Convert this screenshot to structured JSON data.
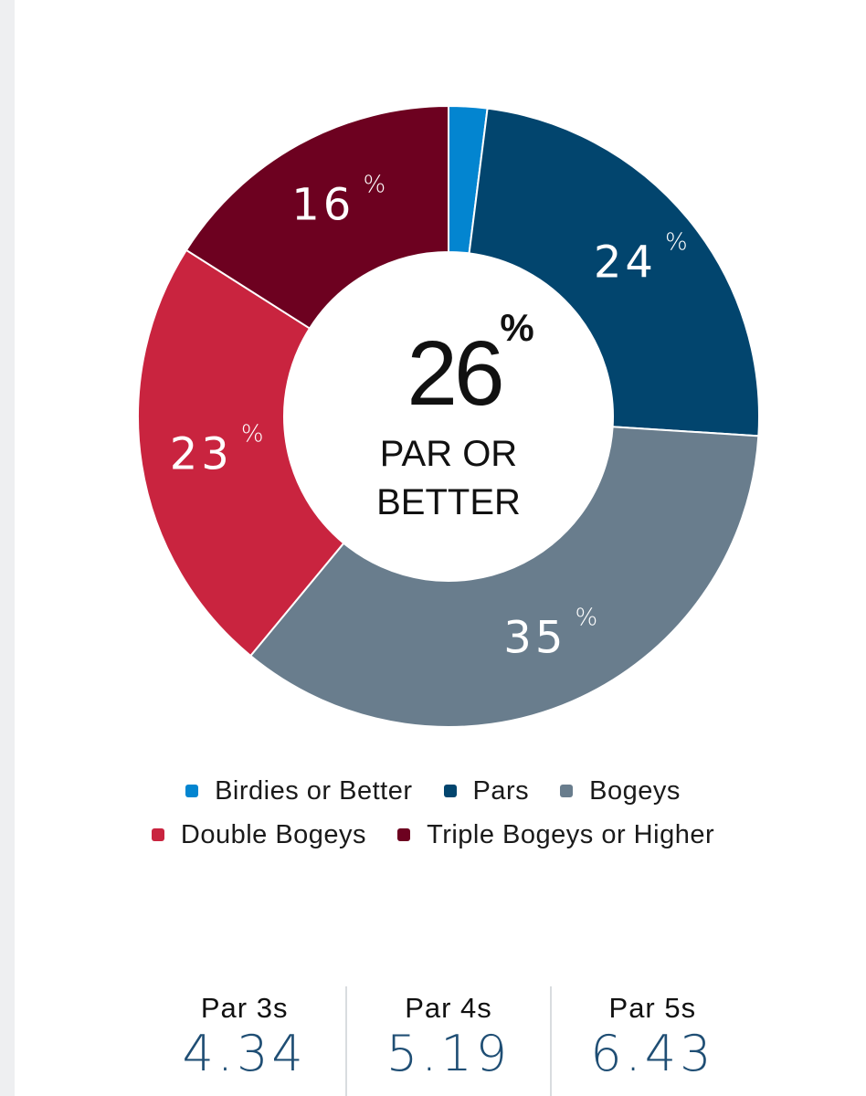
{
  "chart_data": {
    "type": "pie",
    "donut": true,
    "center": {
      "value": "26",
      "unit": "%",
      "label_line1": "PAR OR",
      "label_line2": "BETTER"
    },
    "slices": [
      {
        "name": "Birdies or Better",
        "value": 2,
        "label": "",
        "color": "#0385d0"
      },
      {
        "name": "Pars",
        "value": 24,
        "label": "24",
        "color": "#02456e"
      },
      {
        "name": "Bogeys",
        "value": 35,
        "label": "35",
        "color": "#697d8d"
      },
      {
        "name": "Double Bogeys",
        "value": 23,
        "label": "23",
        "color": "#c9243f"
      },
      {
        "name": "Triple Bogeys or Higher",
        "value": 16,
        "label": "16",
        "color": "#6d0120"
      }
    ],
    "pct_symbol": "%",
    "legend": {
      "placement": "bottom",
      "rows": [
        [
          "Birdies or Better",
          "Pars",
          "Bogeys"
        ],
        [
          "Double Bogeys",
          "Triple Bogeys or Higher"
        ]
      ]
    }
  },
  "par_stats": [
    {
      "title": "Par 3s",
      "value": "4.34"
    },
    {
      "title": "Par 4s",
      "value": "5.19"
    },
    {
      "title": "Par 5s",
      "value": "6.43"
    }
  ]
}
